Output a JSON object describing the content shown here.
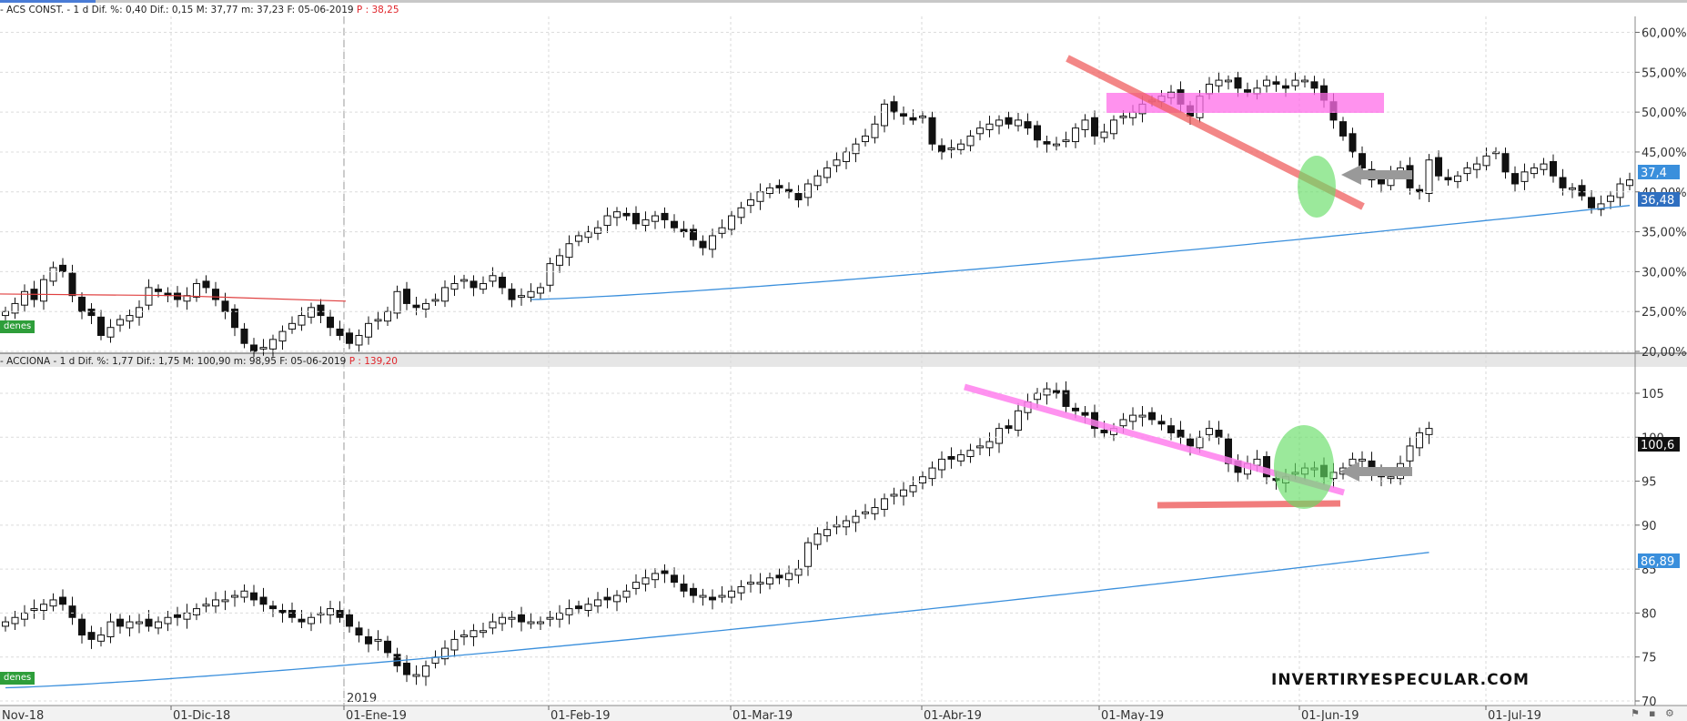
{
  "top_pane": {
    "header": {
      "text": "- ACS CONST. -  1 d Dif. %: 0,40 Dif.: 0,15 M: 37,77 m: 37,23 F: 05-06-2019",
      "price": "P : 38,25"
    },
    "badge": "denes",
    "last_label": "37,4",
    "ma_label": "36,48",
    "colors": {
      "ma100": "#3a8fdc",
      "ma_red": "#e04040",
      "resistance_zone": "#ff6ee8",
      "downtrend": "#f06060",
      "highlight": "#66dd66",
      "arrow": "#999999"
    }
  },
  "bottom_pane": {
    "header": {
      "text": "- ACCIONA -  1 d Dif. %: 1,77 Dif.: 1,75 M: 100,90 m: 98,95 F: 05-06-2019",
      "price": "P : 139,20"
    },
    "badge": "denes",
    "last_label": "100,6",
    "ma_label": "86,89",
    "year_marker": "2019",
    "watermark": "INVERTIRYESPECULAR.COM",
    "colors": {
      "ma100": "#3a8fdc",
      "downtrend": "#ff80ee",
      "support": "#f07070",
      "highlight": "#66dd66",
      "arrow": "#999999"
    }
  },
  "x_axis": {
    "labels": [
      "Nov-18",
      "01-Dic-18",
      "01-Ene-19",
      "01-Feb-19",
      "01-Mar-19",
      "01-Abr-19",
      "01-May-19",
      "01-Jun-19",
      "01-Jul-19"
    ]
  },
  "chart_data": [
    {
      "type": "candlestick",
      "title": "ACS CONST.",
      "y_ticks": [
        "20,00%",
        "25,00%",
        "30,00%",
        "35,00%",
        "40,00%",
        "45,00%",
        "50,00%",
        "55,00%",
        "60,00%"
      ],
      "ylim": [
        20,
        62
      ],
      "close": [
        25,
        26,
        27.5,
        26.5,
        29,
        30.5,
        30,
        27,
        25,
        24.5,
        22,
        23,
        24,
        24.5,
        25.5,
        28,
        27.5,
        27,
        26.5,
        27,
        28.5,
        28,
        26.5,
        25,
        23,
        21,
        20,
        20.5,
        21.5,
        22.5,
        23.5,
        24.5,
        25.5,
        24.5,
        23,
        22,
        21,
        22,
        23.5,
        24,
        25,
        27.5,
        26,
        25.5,
        26,
        26.5,
        28,
        28.5,
        29,
        28,
        28.5,
        29.5,
        28,
        26.5,
        27,
        27.5,
        28,
        31,
        32,
        33.5,
        34.5,
        35,
        35.5,
        37,
        37.5,
        37,
        36,
        36.5,
        37,
        36.5,
        35.5,
        35,
        34,
        33,
        34.5,
        35.5,
        37,
        38,
        39,
        40,
        40.5,
        40.5,
        40,
        39,
        41,
        42,
        43,
        44,
        45,
        46,
        47,
        48.5,
        51,
        50,
        49.5,
        49,
        49.5,
        46,
        45,
        45.5,
        46,
        47,
        48,
        48.5,
        49,
        48.5,
        49,
        48,
        46.5,
        46,
        46,
        46.5,
        48,
        49,
        47,
        47.5,
        49,
        49.5,
        50,
        51,
        51.5,
        52,
        52.5,
        51,
        49.5,
        52,
        53.5,
        54,
        54,
        53,
        52.5,
        53,
        54,
        53.5,
        53,
        54,
        54,
        53,
        51.5,
        49,
        47,
        45,
        43,
        41.5,
        41,
        42.5,
        43,
        40.5,
        40,
        44,
        42,
        41.5,
        42,
        43,
        43.5,
        44.5,
        45,
        42.5,
        41,
        42.5,
        43,
        43.5,
        42,
        40.5,
        40.5,
        39.5,
        38,
        38.5,
        39.5,
        41,
        41.5
      ],
      "ma100_from_index": 55,
      "ma100_range": [
        26.5,
        38.3
      ]
    },
    {
      "type": "candlestick",
      "title": "ACCIONA",
      "y_ticks": [
        "70",
        "75",
        "80",
        "85",
        "90",
        "95",
        "100",
        "105"
      ],
      "ylim": [
        70,
        108
      ],
      "close": [
        79,
        79.5,
        80,
        80.5,
        81,
        81.5,
        81,
        79.5,
        77.5,
        77,
        77.5,
        79,
        78.5,
        79,
        79,
        78.5,
        79,
        79.5,
        79.5,
        80,
        80.5,
        81,
        81.5,
        81.5,
        82,
        82.5,
        81.5,
        81,
        80.5,
        80,
        79.5,
        79,
        79.5,
        80,
        80.5,
        79.5,
        78.5,
        77.5,
        76.5,
        77,
        75.5,
        74,
        73,
        73,
        74,
        75,
        76,
        77,
        77.5,
        78,
        78,
        79,
        79.5,
        79.5,
        79,
        79,
        79,
        79.5,
        80,
        80.5,
        80.5,
        81,
        81.5,
        81.5,
        82,
        82.5,
        83.5,
        84,
        84.5,
        84.5,
        83.5,
        82.5,
        82,
        82,
        81.5,
        82,
        82.5,
        83,
        83.5,
        83.5,
        84,
        84,
        84.5,
        85,
        88,
        89,
        89.5,
        90,
        90.5,
        91,
        91.5,
        92,
        93,
        93.5,
        94,
        94.5,
        95.5,
        96.5,
        97.5,
        97.5,
        98,
        98.5,
        99,
        99.5,
        101,
        101,
        103,
        104,
        105,
        105.5,
        105,
        103.5,
        103,
        102.5,
        101,
        100.5,
        101,
        102,
        102.5,
        102.5,
        102,
        101.5,
        100.5,
        100,
        99,
        100,
        101,
        100,
        97,
        96,
        97,
        97.5,
        95.5,
        95,
        95.5,
        96,
        96.5,
        96.5,
        95.5,
        96,
        96.5,
        97.5,
        97.5,
        96,
        95.5,
        95.5,
        97,
        99,
        100.5,
        101
      ],
      "ma100_from_index": 0,
      "ma100_range": [
        71.5,
        86.9
      ]
    }
  ]
}
